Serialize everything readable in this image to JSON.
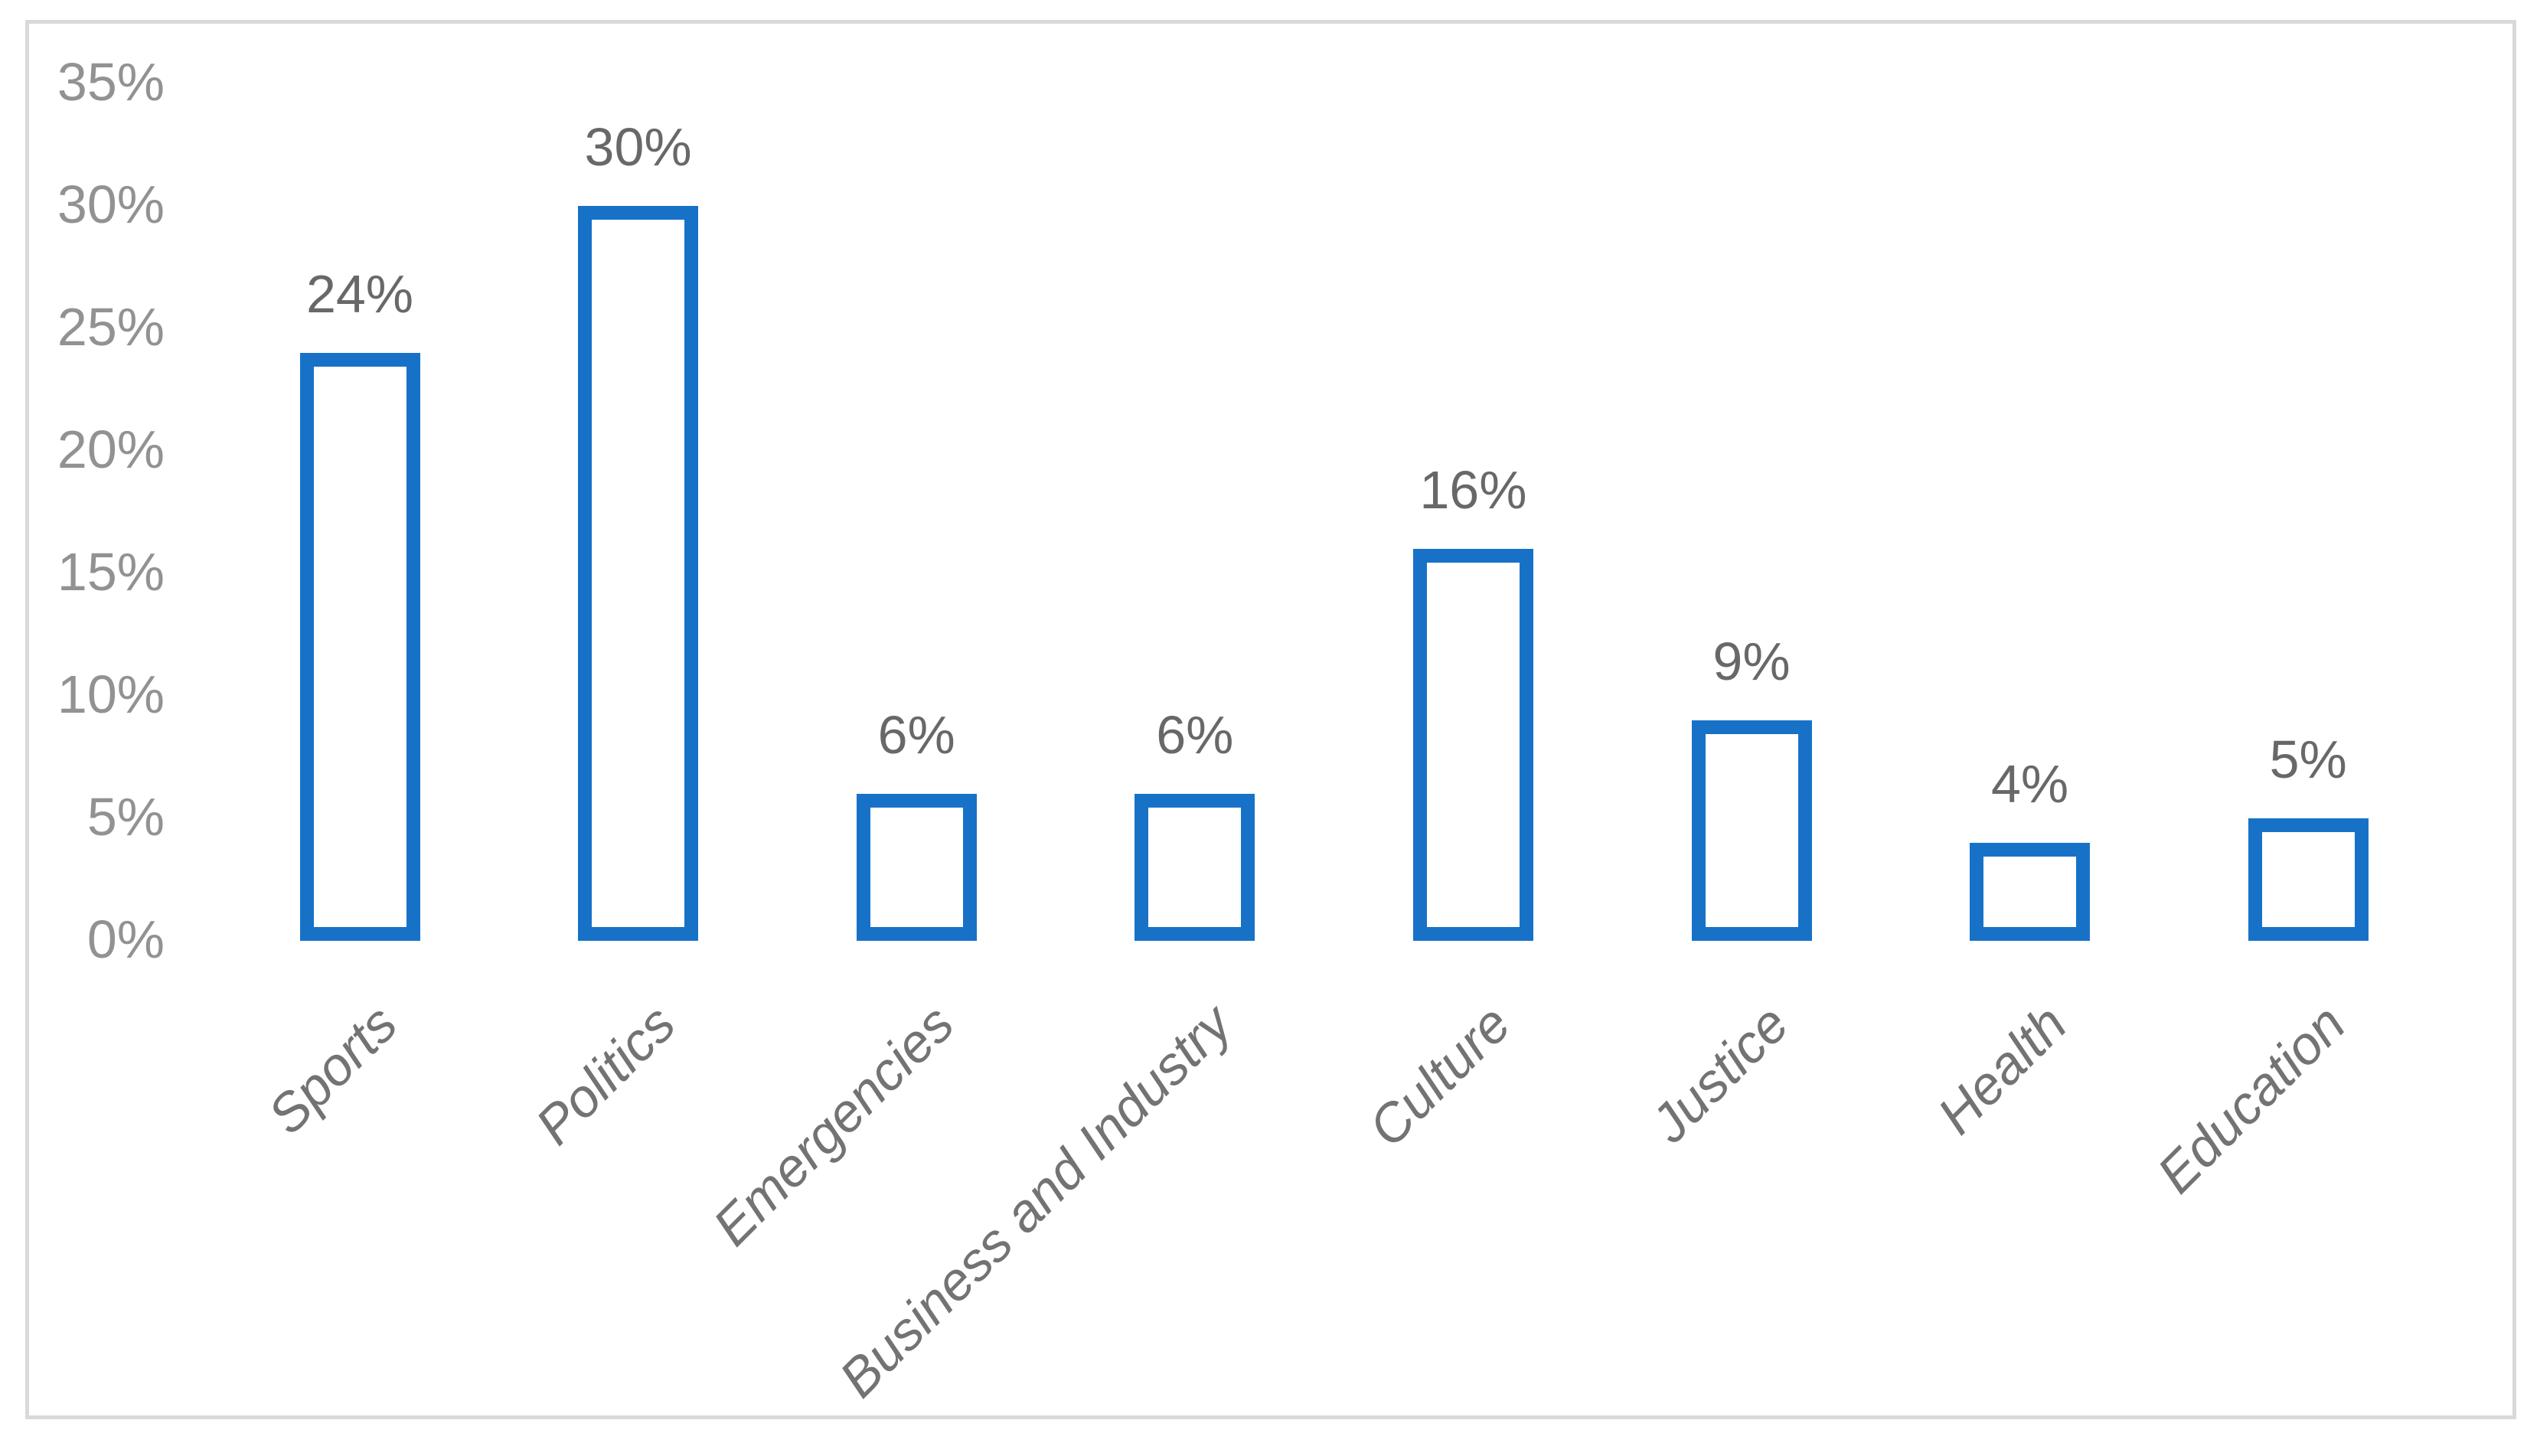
{
  "chart_data": {
    "type": "bar",
    "title": "",
    "xlabel": "",
    "ylabel": "",
    "categories": [
      "Sports",
      "Politics",
      "Emergencies",
      "Business and Industry",
      "Culture",
      "Justice",
      "Health",
      "Education"
    ],
    "values": [
      24,
      30,
      6,
      6,
      16,
      9,
      4,
      5
    ],
    "data_labels": [
      "24%",
      "30%",
      "6%",
      "6%",
      "16%",
      "9%",
      "4%",
      "5%"
    ],
    "y_ticks": [
      {
        "label": "35%",
        "value": 35
      },
      {
        "label": "30%",
        "value": 30
      },
      {
        "label": "25%",
        "value": 25
      },
      {
        "label": "20%",
        "value": 20
      },
      {
        "label": "15%",
        "value": 15
      },
      {
        "label": "10%",
        "value": 10
      },
      {
        "label": "5%",
        "value": 5
      },
      {
        "label": "0%",
        "value": 0
      }
    ],
    "ylim": [
      0,
      35
    ],
    "grid": false,
    "legend": false,
    "bar_fill": "#ffffff",
    "bar_stroke": "#1772c7",
    "frame_border_color": "#d9d9d9",
    "y_tick_color": "#929292",
    "data_label_color": "#686868",
    "category_label_color": "#737373"
  }
}
